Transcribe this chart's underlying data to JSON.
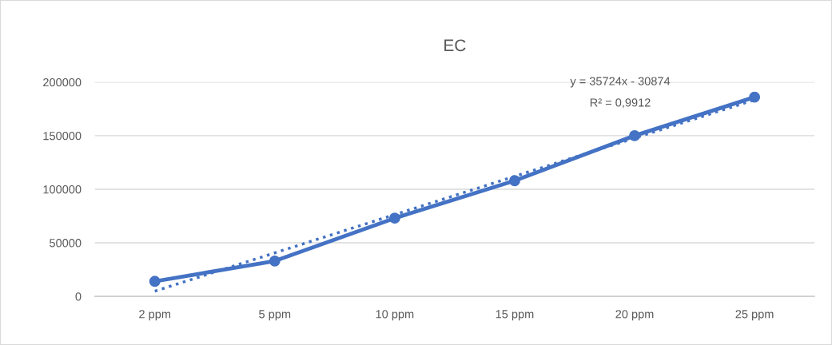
{
  "chart_data": {
    "type": "line",
    "title": "EC",
    "categories": [
      "2 ppm",
      "5 ppm",
      "10 ppm",
      "15 ppm",
      "20 ppm",
      "25 ppm"
    ],
    "series": [
      {
        "color": "#4472c4",
        "values": [
          14000,
          33000,
          73000,
          108000,
          150000,
          186000
        ],
        "marker": "circle",
        "line_style": "solid"
      },
      {
        "type": "line",
        "x": [
          "2 ppm",
          "25 ppm"
        ],
        "color": "#4472c4",
        "values": [
          4850,
          183470
        ],
        "marker": "none",
        "line_style": "dotted"
      }
    ],
    "ylim": [
      0,
      200000
    ],
    "yticks": [
      0,
      50000,
      100000,
      150000,
      200000
    ],
    "grid": "y",
    "legend": false,
    "annotations": [
      "y = 35724x - 30874",
      "R² = 0,9912"
    ]
  }
}
